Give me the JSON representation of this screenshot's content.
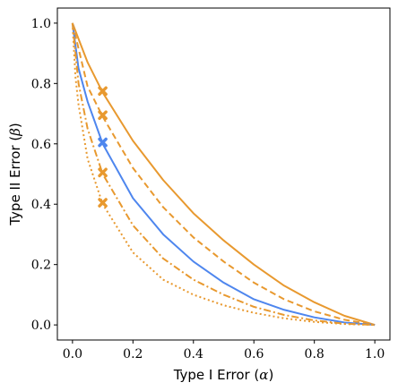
{
  "chart_data": {
    "type": "line",
    "title": "",
    "xlabel": "Type I Error (α)",
    "ylabel": "Type II Error (β)",
    "xlabel_parts": {
      "text": "Type I Error (",
      "symbol": "α",
      "close": ")"
    },
    "ylabel_parts": {
      "text": "Type II Error (",
      "symbol": "β",
      "close": ")"
    },
    "xlim": [
      -0.05,
      1.05
    ],
    "ylim": [
      -0.05,
      1.05
    ],
    "xticks": [
      "0.0",
      "0.2",
      "0.4",
      "0.6",
      "0.8",
      "1.0"
    ],
    "yticks": [
      "0.0",
      "0.2",
      "0.4",
      "0.6",
      "0.8",
      "1.0"
    ],
    "grid": false,
    "legend": "none",
    "colors": {
      "orange": "#E8992F",
      "blue": "#4E86EE"
    },
    "series": [
      {
        "style": "solid",
        "color": "#E8992F",
        "x": [
          0,
          0.05,
          0.1,
          0.2,
          0.3,
          0.4,
          0.5,
          0.6,
          0.7,
          0.8,
          0.9,
          1.0
        ],
        "y": [
          1.0,
          0.87,
          0.77,
          0.61,
          0.48,
          0.37,
          0.28,
          0.2,
          0.13,
          0.075,
          0.03,
          0.0
        ]
      },
      {
        "style": "dashed",
        "color": "#E8992F",
        "x": [
          0,
          0.05,
          0.1,
          0.2,
          0.3,
          0.4,
          0.5,
          0.6,
          0.7,
          0.8,
          0.9,
          1.0
        ],
        "y": [
          1.0,
          0.79,
          0.69,
          0.52,
          0.39,
          0.29,
          0.21,
          0.14,
          0.085,
          0.045,
          0.017,
          0.0
        ]
      },
      {
        "style": "solid",
        "color": "#4E86EE",
        "x": [
          0,
          0.02,
          0.05,
          0.1,
          0.2,
          0.3,
          0.4,
          0.5,
          0.6,
          0.7,
          0.8,
          0.9,
          1.0
        ],
        "y": [
          1.0,
          0.85,
          0.74,
          0.6,
          0.42,
          0.3,
          0.21,
          0.14,
          0.085,
          0.05,
          0.025,
          0.008,
          0.0
        ]
      },
      {
        "style": "dashdot",
        "color": "#E8992F",
        "x": [
          0,
          0.02,
          0.05,
          0.1,
          0.2,
          0.3,
          0.4,
          0.5,
          0.6,
          0.7,
          0.8,
          0.9,
          1.0
        ],
        "y": [
          1.0,
          0.8,
          0.65,
          0.5,
          0.33,
          0.22,
          0.15,
          0.1,
          0.06,
          0.033,
          0.015,
          0.004,
          0.0
        ]
      },
      {
        "style": "dotted",
        "color": "#E8992F",
        "x": [
          0,
          0.01,
          0.02,
          0.05,
          0.1,
          0.2,
          0.3,
          0.4,
          0.5,
          0.6,
          0.7,
          0.8,
          0.9,
          1.0
        ],
        "y": [
          1.0,
          0.82,
          0.73,
          0.55,
          0.4,
          0.24,
          0.15,
          0.1,
          0.065,
          0.04,
          0.022,
          0.01,
          0.003,
          0.0
        ]
      }
    ],
    "markers": [
      {
        "x": 0.1,
        "y": 0.775,
        "color": "#E8992F"
      },
      {
        "x": 0.1,
        "y": 0.695,
        "color": "#E8992F"
      },
      {
        "x": 0.1,
        "y": 0.605,
        "color": "#4E86EE"
      },
      {
        "x": 0.1,
        "y": 0.505,
        "color": "#E8992F"
      },
      {
        "x": 0.1,
        "y": 0.405,
        "color": "#E8992F"
      }
    ]
  }
}
